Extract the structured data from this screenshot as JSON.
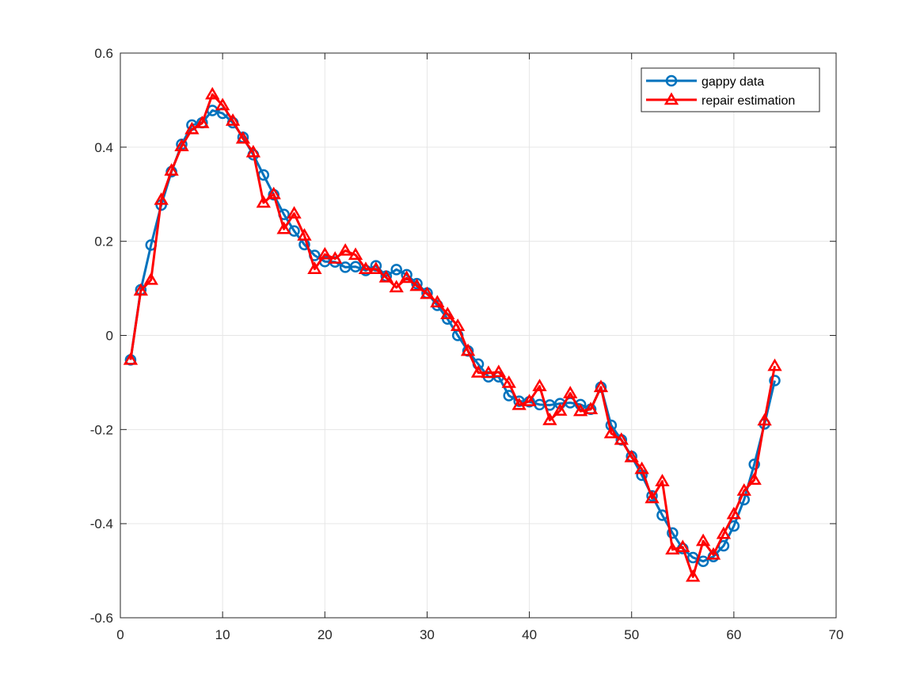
{
  "chart_data": {
    "type": "line",
    "title": "",
    "xlabel": "",
    "ylabel": "",
    "xlim": [
      0,
      70
    ],
    "ylim": [
      -0.6,
      0.6
    ],
    "xticks": [
      0,
      10,
      20,
      30,
      40,
      50,
      60,
      70
    ],
    "yticks": [
      -0.6,
      -0.4,
      -0.2,
      0,
      0.2,
      0.4,
      0.6
    ],
    "xtick_labels": [
      "0",
      "10",
      "20",
      "30",
      "40",
      "50",
      "60",
      "70"
    ],
    "ytick_labels": [
      "-0.6",
      "-0.4",
      "-0.2",
      "0",
      "0.2",
      "0.4",
      "0.6"
    ],
    "grid": true,
    "legend_position": "top-right",
    "x": [
      1,
      2,
      3,
      4,
      5,
      6,
      7,
      8,
      9,
      10,
      11,
      12,
      13,
      14,
      15,
      16,
      17,
      18,
      19,
      20,
      21,
      22,
      23,
      24,
      25,
      26,
      27,
      28,
      29,
      30,
      31,
      32,
      33,
      34,
      35,
      36,
      37,
      38,
      39,
      40,
      41,
      42,
      43,
      44,
      45,
      46,
      47,
      48,
      49,
      50,
      51,
      52,
      53,
      54,
      55,
      56,
      57,
      58,
      59,
      60,
      61,
      62,
      63,
      64
    ],
    "series": [
      {
        "name": "gappy data",
        "color": "#0072BD",
        "marker": "circle",
        "values": [
          -0.052,
          0.097,
          0.192,
          0.277,
          0.348,
          0.406,
          0.447,
          0.452,
          0.478,
          0.472,
          0.452,
          0.421,
          0.384,
          0.341,
          0.299,
          0.257,
          0.222,
          0.193,
          0.17,
          0.157,
          0.156,
          0.145,
          0.146,
          0.138,
          0.148,
          0.126,
          0.14,
          0.129,
          0.11,
          0.09,
          0.064,
          0.035,
          0.0,
          -0.033,
          -0.061,
          -0.088,
          -0.088,
          -0.128,
          -0.14,
          -0.141,
          -0.147,
          -0.148,
          -0.145,
          -0.143,
          -0.147,
          -0.157,
          -0.11,
          -0.191,
          -0.222,
          -0.257,
          -0.297,
          -0.341,
          -0.382,
          -0.42,
          -0.453,
          -0.472,
          -0.48,
          -0.47,
          -0.447,
          -0.405,
          -0.349,
          -0.274,
          -0.188,
          -0.096
        ]
      },
      {
        "name": "repair estimation",
        "color": "#FF0000",
        "marker": "triangle",
        "values": [
          -0.052,
          0.095,
          0.118,
          0.288,
          0.35,
          0.402,
          0.438,
          0.451,
          0.512,
          0.489,
          0.456,
          0.418,
          0.389,
          0.282,
          0.3,
          0.226,
          0.259,
          0.212,
          0.141,
          0.172,
          0.163,
          0.18,
          0.171,
          0.141,
          0.141,
          0.123,
          0.102,
          0.122,
          0.105,
          0.088,
          0.07,
          0.045,
          0.02,
          -0.033,
          -0.079,
          -0.08,
          -0.078,
          -0.101,
          -0.148,
          -0.14,
          -0.108,
          -0.18,
          -0.16,
          -0.123,
          -0.161,
          -0.157,
          -0.11,
          -0.208,
          -0.222,
          -0.259,
          -0.284,
          -0.346,
          -0.31,
          -0.455,
          -0.45,
          -0.513,
          -0.437,
          -0.466,
          -0.422,
          -0.38,
          -0.33,
          -0.307,
          -0.181,
          -0.065
        ]
      }
    ]
  }
}
